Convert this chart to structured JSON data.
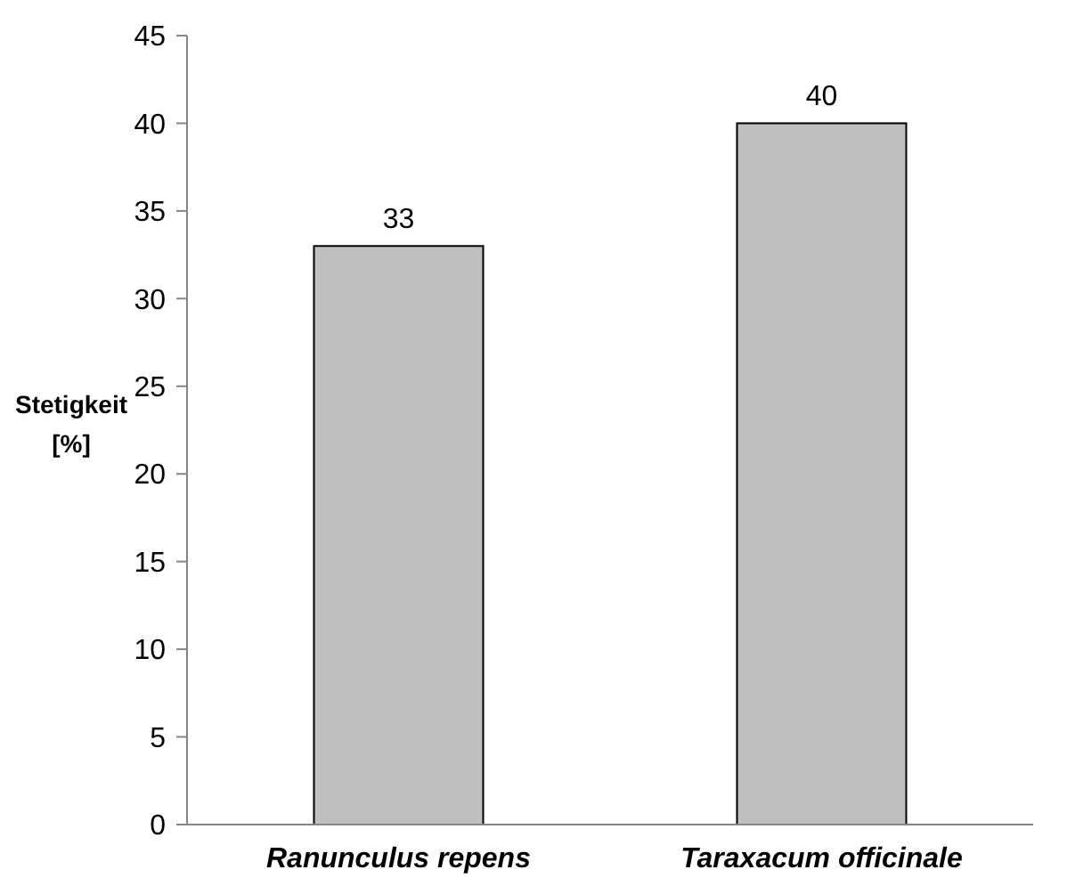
{
  "chart_data": {
    "type": "bar",
    "ylabel": "Stetigkeit [%]",
    "categories": [
      "Ranunculus repens",
      "Taraxacum officinale"
    ],
    "values": [
      33,
      40
    ],
    "color": "#bfbfbf",
    "ylim": [
      0,
      45
    ],
    "yticks": [
      0,
      5,
      10,
      15,
      20,
      25,
      30,
      35,
      40,
      45
    ],
    "data_labels": true,
    "grid": false
  }
}
